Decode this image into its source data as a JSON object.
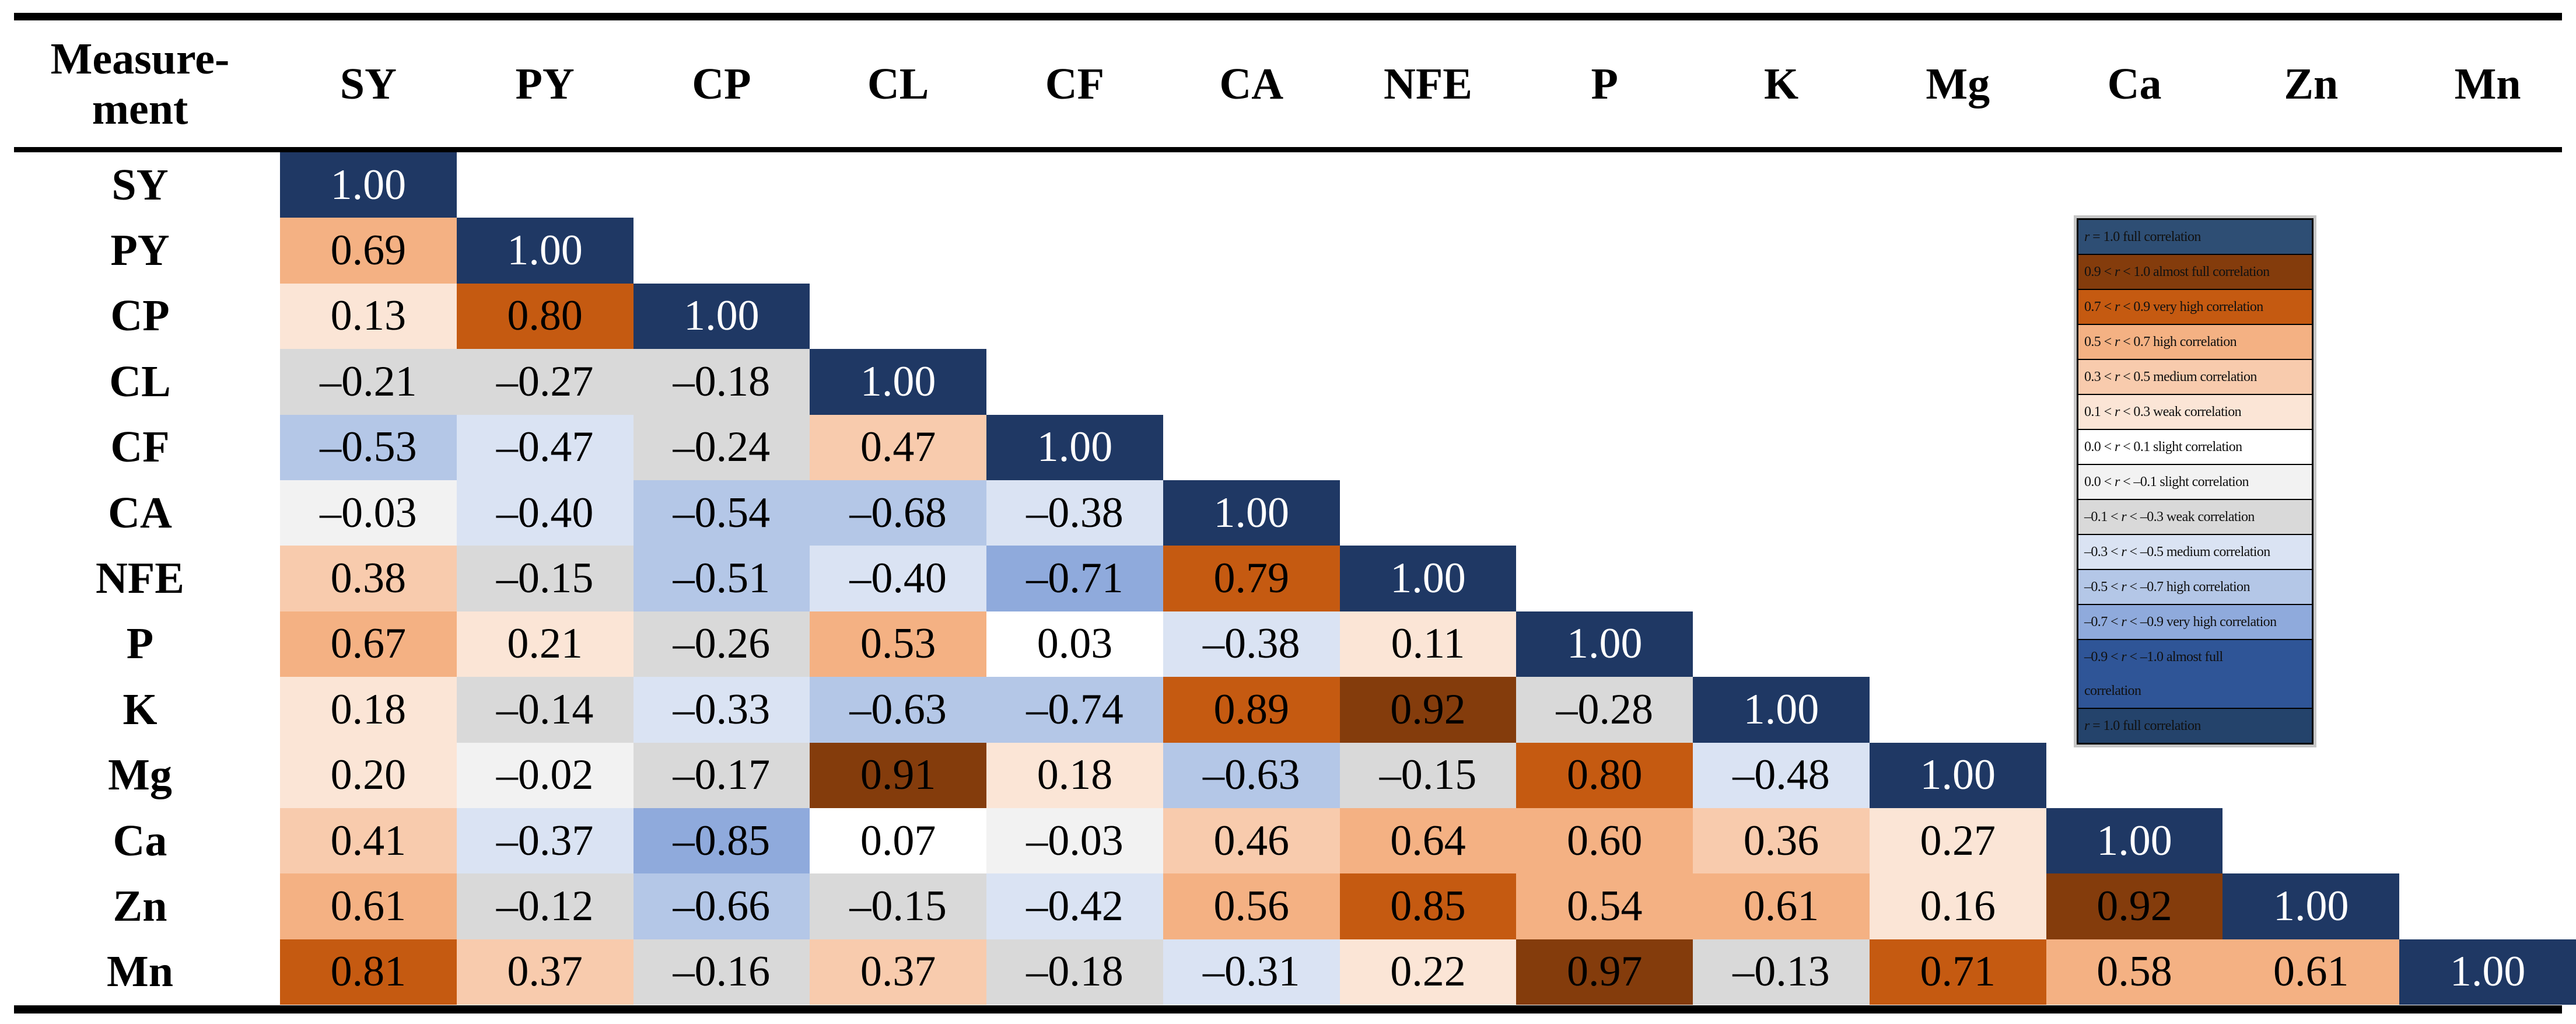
{
  "table": {
    "corner_header_line1": "Measure-",
    "corner_header_line2": "ment"
  },
  "palette": {
    "full_positive": "#1F3864",
    "full_text": "#FFFFFF",
    "pos_almost_full": "#843C0C",
    "pos_very_high": "#C55A11",
    "pos_high": "#F4B183",
    "pos_medium": "#F8CBAD",
    "pos_weak": "#FBE5D6",
    "pos_slight": "#FFFFFF",
    "neg_slight": "#F2F2F2",
    "neg_weak": "#D9D9D9",
    "neg_medium": "#DAE3F3",
    "neg_high": "#B4C7E7",
    "neg_very_high": "#8FAADC",
    "neg_almost_full": "#2F5597",
    "legend_full_pos_row": "#2E4E74",
    "legend_full_neg_row": "#24436B"
  },
  "overrides": [
    {
      "row": "K",
      "col": "CF",
      "color": "#B4C7E7"
    }
  ],
  "legend": {
    "items": [
      {
        "text": "r = 1.0 full correlation",
        "color": "#2E4E74"
      },
      {
        "text": "0.9 < r < 1.0 almost full correlation",
        "color": "#843C0C"
      },
      {
        "text": "0.7 < r < 0.9 very high correlation",
        "color": "#C55A11"
      },
      {
        "text": "0.5 < r < 0.7 high correlation",
        "color": "#F4B183"
      },
      {
        "text": "0.3 < r < 0.5 medium correlation",
        "color": "#F8CBAD"
      },
      {
        "text": "0.1 < r < 0.3 weak correlation",
        "color": "#FBE5D6"
      },
      {
        "text": "0.0 < r < 0.1 slight correlation",
        "color": "#FFFFFF"
      },
      {
        "text": "0.0 < r < –0.1 slight correlation",
        "color": "#F2F2F2"
      },
      {
        "text": "–0.1 < r < –0.3 weak correlation",
        "color": "#D9D9D9"
      },
      {
        "text": "–0.3 < r < –0.5 medium correlation",
        "color": "#DAE3F3"
      },
      {
        "text": "–0.5 < r < –0.7 high correlation",
        "color": "#B4C7E7"
      },
      {
        "text": "–0.7 < r < –0.9 very high correlation",
        "color": "#8FAADC"
      },
      {
        "text": "–0.9 < r < –1.0 almost full\ncorrelation",
        "color": "#2F5597"
      },
      {
        "text": "r = 1.0 full correlation",
        "color": "#24436B"
      }
    ]
  },
  "chart_data": {
    "type": "heatmap",
    "title": "",
    "xlabel": "",
    "ylabel": "",
    "legend_position": "top-right",
    "categories": [
      "SY",
      "PY",
      "CP",
      "CL",
      "CF",
      "CA",
      "NFE",
      "P",
      "K",
      "Mg",
      "Ca",
      "Zn",
      "Mn"
    ],
    "rows": [
      {
        "label": "SY",
        "values": [
          "1.00"
        ]
      },
      {
        "label": "PY",
        "values": [
          "0.69",
          "1.00"
        ]
      },
      {
        "label": "CP",
        "values": [
          "0.13",
          "0.80",
          "1.00"
        ]
      },
      {
        "label": "CL",
        "values": [
          "–0.21",
          "–0.27",
          "–0.18",
          "1.00"
        ]
      },
      {
        "label": "CF",
        "values": [
          "–0.53",
          "–0.47",
          "–0.24",
          "0.47",
          "1.00"
        ]
      },
      {
        "label": "CA",
        "values": [
          "–0.03",
          "–0.40",
          "–0.54",
          "–0.68",
          "–0.38",
          "1.00"
        ]
      },
      {
        "label": "NFE",
        "values": [
          "0.38",
          "–0.15",
          "–0.51",
          "–0.40",
          "–0.71",
          "0.79",
          "1.00"
        ]
      },
      {
        "label": "P",
        "values": [
          "0.67",
          "0.21",
          "–0.26",
          "0.53",
          "0.03",
          "–0.38",
          "0.11",
          "1.00"
        ]
      },
      {
        "label": "K",
        "values": [
          "0.18",
          "–0.14",
          "–0.33",
          "–0.63",
          "–0.74",
          "0.89",
          "0.92",
          "–0.28",
          "1.00"
        ]
      },
      {
        "label": "Mg",
        "values": [
          "0.20",
          "–0.02",
          "–0.17",
          "0.91",
          "0.18",
          "–0.63",
          "–0.15",
          "0.80",
          "–0.48",
          "1.00"
        ]
      },
      {
        "label": "Ca",
        "values": [
          "0.41",
          "–0.37",
          "–0.85",
          "0.07",
          "–0.03",
          "0.46",
          "0.64",
          "0.60",
          "0.36",
          "0.27",
          "1.00"
        ]
      },
      {
        "label": "Zn",
        "values": [
          "0.61",
          "–0.12",
          "–0.66",
          "–0.15",
          "–0.42",
          "0.56",
          "0.85",
          "0.54",
          "0.61",
          "0.16",
          "0.92",
          "1.00"
        ]
      },
      {
        "label": "Mn",
        "values": [
          "0.81",
          "0.37",
          "–0.16",
          "0.37",
          "–0.18",
          "–0.31",
          "0.22",
          "0.97",
          "–0.13",
          "0.71",
          "0.58",
          "0.61",
          "1.00"
        ]
      }
    ]
  }
}
